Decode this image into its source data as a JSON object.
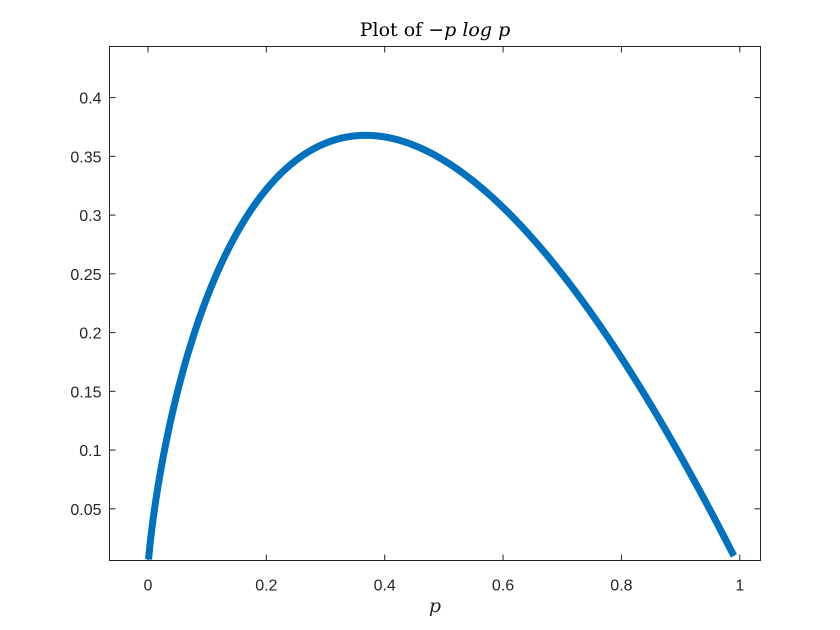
{
  "chart_data": {
    "type": "line",
    "title_prefix": "Plot of ",
    "title_math": "−p log p",
    "xlabel": "p",
    "ylabel": "",
    "xlim": [
      -0.065,
      1.035
    ],
    "ylim": [
      0.006,
      0.4435
    ],
    "xticks": [
      0,
      0.2,
      0.4,
      0.6,
      0.8,
      1
    ],
    "xtick_labels": [
      "0",
      "0.2",
      "0.4",
      "0.6",
      "0.8",
      "1"
    ],
    "yticks": [
      0.05,
      0.1,
      0.15,
      0.2,
      0.25,
      0.3,
      0.35,
      0.4
    ],
    "ytick_labels": [
      "0.05",
      "0.1",
      "0.15",
      "0.2",
      "0.25",
      "0.3",
      "0.35",
      "0.4"
    ],
    "grid": false,
    "box": true,
    "series": [
      {
        "function": "-p*ln(p)",
        "p_range": [
          0.001,
          0.99
        ],
        "color": "#0072BD"
      }
    ]
  }
}
